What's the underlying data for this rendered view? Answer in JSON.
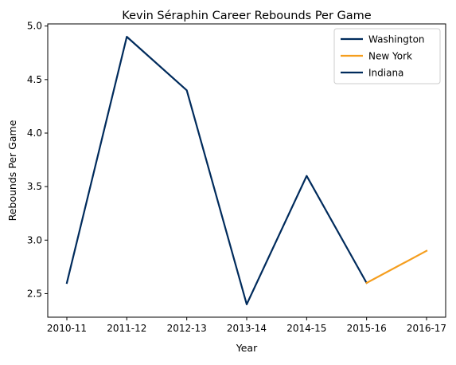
{
  "chart_data": {
    "type": "line",
    "title": "Kevin Séraphin Career Rebounds Per Game",
    "xlabel": "Year",
    "ylabel": "Rebounds Per Game",
    "categories": [
      "2010-11",
      "2011-12",
      "2012-13",
      "2013-14",
      "2014-15",
      "2015-16",
      "2016-17"
    ],
    "y_ticks": [
      "2.5",
      "3.0",
      "3.5",
      "4.0",
      "4.5",
      "5.0"
    ],
    "ylim": [
      2.28,
      5.02
    ],
    "grid": false,
    "legend_position": "top-right",
    "series": [
      {
        "name": "Washington",
        "color": "#002b5c",
        "points": [
          {
            "x": "2010-11",
            "y": 2.6
          },
          {
            "x": "2011-12",
            "y": 4.9
          },
          {
            "x": "2012-13",
            "y": 4.4
          },
          {
            "x": "2013-14",
            "y": 2.4
          },
          {
            "x": "2014-15",
            "y": 3.6
          },
          {
            "x": "2015-16",
            "y": 2.6
          }
        ]
      },
      {
        "name": "New York",
        "color": "#f59e1e",
        "points": [
          {
            "x": "2015-16",
            "y": 2.6
          },
          {
            "x": "2016-17",
            "y": 2.9
          }
        ]
      },
      {
        "name": "Indiana",
        "color": "#002b5c",
        "points": []
      }
    ]
  }
}
